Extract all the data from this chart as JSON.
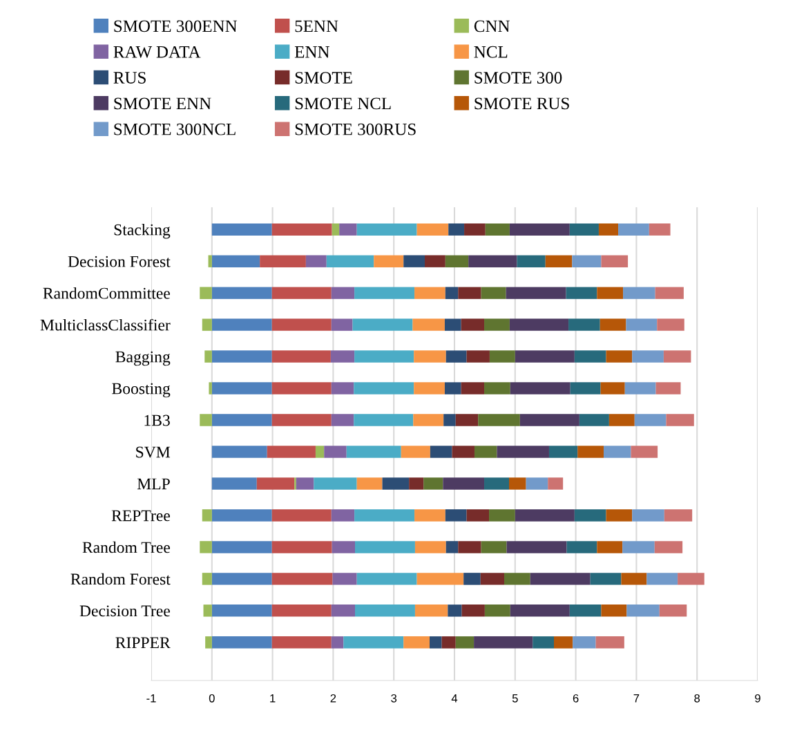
{
  "chart_data": {
    "type": "bar",
    "orientation": "horizontal",
    "stacked": true,
    "categories": [
      "Stacking",
      "Decision Forest",
      "RandomCommittee",
      "MulticlassClassifier",
      "Bagging",
      "Boosting",
      "1B3",
      "SVM",
      "MLP",
      "REPTree",
      "Random Tree",
      "Random Forest",
      "Decision Tree",
      "RIPPER"
    ],
    "series": [
      {
        "name": "SMOTE 300ENN",
        "color": "#4f81bd",
        "values": [
          0.99,
          0.79,
          0.99,
          0.99,
          0.99,
          0.99,
          0.99,
          0.91,
          0.74,
          0.99,
          0.99,
          0.99,
          0.99,
          0.99
        ]
      },
      {
        "name": "5ENN",
        "color": "#c0504d",
        "values": [
          0.99,
          0.76,
          0.98,
          0.98,
          0.97,
          0.98,
          0.98,
          0.8,
          0.62,
          0.98,
          0.99,
          1.0,
          0.98,
          0.98
        ]
      },
      {
        "name": "CNN",
        "color": "#9bbb59",
        "values": [
          0.12,
          -0.06,
          -0.2,
          -0.16,
          -0.12,
          -0.05,
          -0.2,
          0.14,
          0.03,
          -0.16,
          -0.2,
          -0.16,
          -0.14,
          -0.11
        ]
      },
      {
        "name": "RAW DATA",
        "color": "#8064a2",
        "values": [
          0.29,
          0.34,
          0.38,
          0.35,
          0.39,
          0.37,
          0.37,
          0.37,
          0.29,
          0.38,
          0.38,
          0.4,
          0.39,
          0.2
        ]
      },
      {
        "name": "ENN",
        "color": "#4bacc6",
        "values": [
          0.99,
          0.78,
          0.99,
          0.99,
          0.98,
          0.99,
          0.98,
          0.9,
          0.71,
          0.99,
          0.99,
          0.99,
          0.99,
          0.99
        ]
      },
      {
        "name": "NCL",
        "color": "#f79646",
        "values": [
          0.52,
          0.49,
          0.51,
          0.53,
          0.53,
          0.51,
          0.5,
          0.48,
          0.42,
          0.51,
          0.51,
          0.77,
          0.54,
          0.43
        ]
      },
      {
        "name": "RUS",
        "color": "#2c4d75",
        "values": [
          0.26,
          0.35,
          0.21,
          0.27,
          0.34,
          0.27,
          0.2,
          0.36,
          0.44,
          0.35,
          0.2,
          0.28,
          0.23,
          0.2
        ]
      },
      {
        "name": "SMOTE",
        "color": "#772c2a",
        "values": [
          0.35,
          0.34,
          0.38,
          0.38,
          0.38,
          0.38,
          0.37,
          0.37,
          0.24,
          0.37,
          0.38,
          0.39,
          0.38,
          0.23
        ]
      },
      {
        "name": "SMOTE 300",
        "color": "#5f7530",
        "values": [
          0.4,
          0.38,
          0.41,
          0.42,
          0.42,
          0.43,
          0.69,
          0.37,
          0.32,
          0.43,
          0.42,
          0.43,
          0.42,
          0.3
        ]
      },
      {
        "name": "SMOTE ENN",
        "color": "#4d3b62",
        "values": [
          0.99,
          0.8,
          0.99,
          0.97,
          0.98,
          0.99,
          0.98,
          0.86,
          0.68,
          0.98,
          0.99,
          0.99,
          0.98,
          0.97
        ]
      },
      {
        "name": "SMOTE NCL",
        "color": "#276a7c",
        "values": [
          0.48,
          0.47,
          0.51,
          0.52,
          0.52,
          0.5,
          0.49,
          0.47,
          0.41,
          0.52,
          0.5,
          0.51,
          0.52,
          0.35
        ]
      },
      {
        "name": "SMOTE RUS",
        "color": "#b65708",
        "values": [
          0.32,
          0.44,
          0.43,
          0.43,
          0.43,
          0.4,
          0.42,
          0.43,
          0.28,
          0.43,
          0.42,
          0.42,
          0.42,
          0.31
        ]
      },
      {
        "name": "SMOTE 300NCL",
        "color": "#729aca",
        "values": [
          0.51,
          0.48,
          0.53,
          0.51,
          0.52,
          0.51,
          0.52,
          0.45,
          0.36,
          0.53,
          0.53,
          0.51,
          0.54,
          0.38
        ]
      },
      {
        "name": "SMOTE 300RUS",
        "color": "#cd7371",
        "values": [
          0.35,
          0.44,
          0.47,
          0.45,
          0.45,
          0.41,
          0.46,
          0.44,
          0.25,
          0.46,
          0.46,
          0.44,
          0.45,
          0.47
        ]
      }
    ],
    "xlim": [
      -1,
      9
    ],
    "xticks": [
      -1,
      0,
      1,
      2,
      3,
      4,
      5,
      6,
      7,
      8,
      9
    ],
    "grid": "x",
    "legend": "top"
  }
}
